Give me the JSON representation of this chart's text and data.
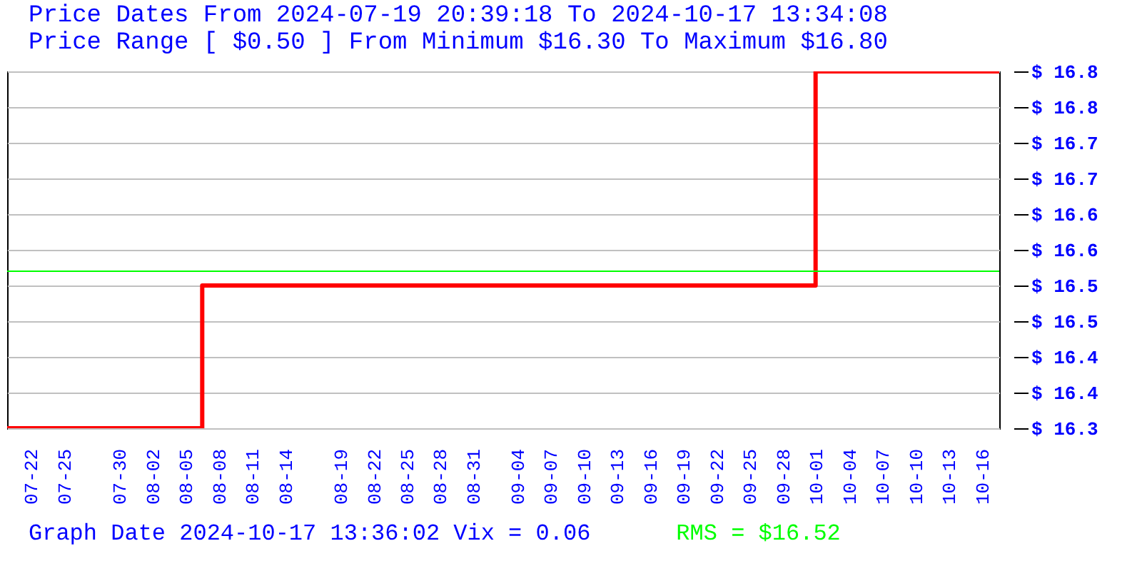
{
  "chart_data": {
    "type": "step",
    "title": "Price Dates From 2024-07-19 20:39:18 To 2024-10-17 13:34:08",
    "subtitle": "Price Range [ $0.50 ] From Minimum $16.30 To Maximum $16.80",
    "x": [
      "2024-07-19T20:39",
      "2024-08-06T12:00",
      "2024-09-30T23:00",
      "2024-10-17T13:34"
    ],
    "series": [
      {
        "color": "#ff0000",
        "values": [
          16.3,
          16.5,
          16.8,
          16.8
        ]
      }
    ],
    "xlim": [
      "2024-07-19T20:39",
      "2024-10-17T13:34"
    ],
    "xticks": [
      {
        "value": "2024-07-22",
        "label": "07-22"
      },
      {
        "value": "2024-07-25",
        "label": "07-25"
      },
      {
        "value": "2024-07-30",
        "label": "07-30"
      },
      {
        "value": "2024-08-02",
        "label": "08-02"
      },
      {
        "value": "2024-08-05",
        "label": "08-05"
      },
      {
        "value": "2024-08-08",
        "label": "08-08"
      },
      {
        "value": "2024-08-11",
        "label": "08-11"
      },
      {
        "value": "2024-08-14",
        "label": "08-14"
      },
      {
        "value": "2024-08-19",
        "label": "08-19"
      },
      {
        "value": "2024-08-22",
        "label": "08-22"
      },
      {
        "value": "2024-08-25",
        "label": "08-25"
      },
      {
        "value": "2024-08-28",
        "label": "08-28"
      },
      {
        "value": "2024-08-31",
        "label": "08-31"
      },
      {
        "value": "2024-09-04",
        "label": "09-04"
      },
      {
        "value": "2024-09-07",
        "label": "09-07"
      },
      {
        "value": "2024-09-10",
        "label": "09-10"
      },
      {
        "value": "2024-09-13",
        "label": "09-13"
      },
      {
        "value": "2024-09-16",
        "label": "09-16"
      },
      {
        "value": "2024-09-19",
        "label": "09-19"
      },
      {
        "value": "2024-09-22",
        "label": "09-22"
      },
      {
        "value": "2024-09-25",
        "label": "09-25"
      },
      {
        "value": "2024-09-28",
        "label": "09-28"
      },
      {
        "value": "2024-10-01",
        "label": "10-01"
      },
      {
        "value": "2024-10-04",
        "label": "10-04"
      },
      {
        "value": "2024-10-07",
        "label": "10-07"
      },
      {
        "value": "2024-10-10",
        "label": "10-10"
      },
      {
        "value": "2024-10-13",
        "label": "10-13"
      },
      {
        "value": "2024-10-16",
        "label": "10-16"
      }
    ],
    "ylim": [
      16.3,
      16.8
    ],
    "yticks": [
      {
        "value": 16.3,
        "label": "$ 16.3"
      },
      {
        "value": 16.35,
        "label": "$ 16.4"
      },
      {
        "value": 16.4,
        "label": "$ 16.4"
      },
      {
        "value": 16.45,
        "label": "$ 16.5"
      },
      {
        "value": 16.5,
        "label": "$ 16.5"
      },
      {
        "value": 16.55,
        "label": "$ 16.6"
      },
      {
        "value": 16.6,
        "label": "$ 16.6"
      },
      {
        "value": 16.65,
        "label": "$ 16.7"
      },
      {
        "value": 16.7,
        "label": "$ 16.7"
      },
      {
        "value": 16.75,
        "label": "$ 16.8"
      },
      {
        "value": 16.8,
        "label": "$ 16.8"
      }
    ],
    "grid": "y",
    "ref_lines": [
      {
        "axis": "y",
        "value": 16.52,
        "color": "#00ff00"
      }
    ],
    "annotations": [
      "Graph Date 2024-10-17 13:36:02 Vix = 0.06",
      "RMS = $16.52"
    ]
  }
}
